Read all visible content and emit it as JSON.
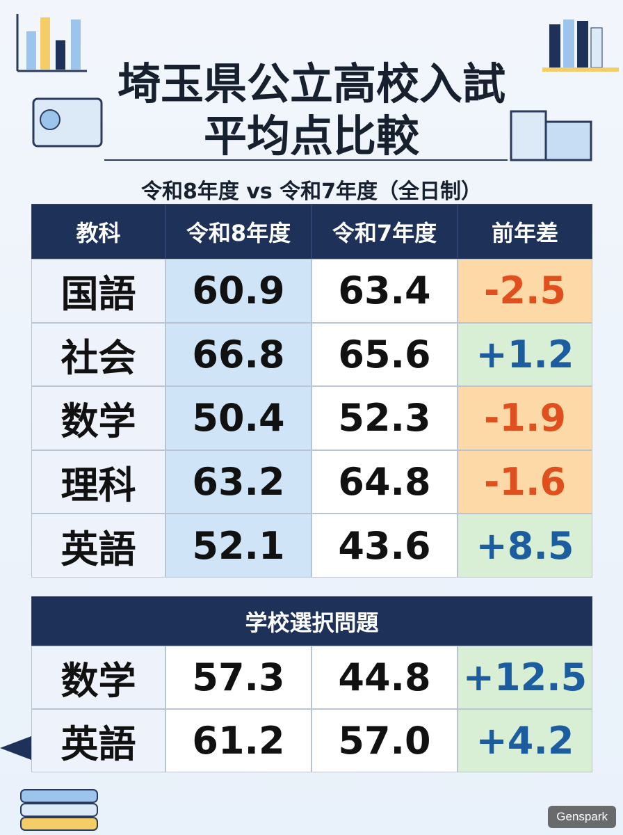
{
  "header": {
    "title_lines": [
      "埼玉県公立高校入試",
      "平均点比較"
    ],
    "subtitle": "令和8年度 vs 令和7年度（全日制）"
  },
  "table": {
    "headers": [
      "教科",
      "令和8年度",
      "令和7年度",
      "前年差"
    ],
    "rows": [
      [
        "国語",
        "60.9",
        "63.4",
        "-2.5"
      ],
      [
        "社会",
        "66.8",
        "65.6",
        "+1.2"
      ],
      [
        "数学",
        "50.4",
        "52.3",
        "-1.9"
      ],
      [
        "理科",
        "63.2",
        "64.8",
        "-1.6"
      ],
      [
        "英語",
        "52.1",
        "43.6",
        "+8.5"
      ]
    ]
  },
  "selection_table": {
    "title": "学校選択問題",
    "rows": [
      [
        "数学",
        "57.3",
        "44.8",
        "+12.5"
      ],
      [
        "英語",
        "61.2",
        "57.0",
        "+4.2"
      ]
    ]
  },
  "watermark": "Genspark"
}
